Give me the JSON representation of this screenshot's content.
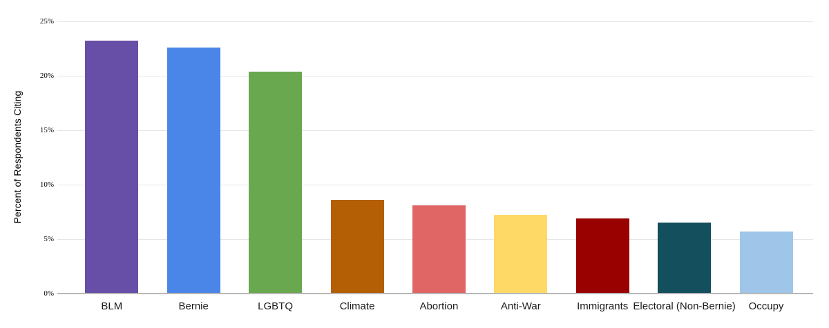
{
  "chart_data": {
    "type": "bar",
    "title": "",
    "xlabel": "",
    "ylabel": "Percent of Respondents Citing",
    "ylim": [
      0,
      25
    ],
    "grid": true,
    "legend": false,
    "yticks": [
      {
        "value": 0,
        "label": "0%"
      },
      {
        "value": 5,
        "label": "5%"
      },
      {
        "value": 10,
        "label": "10%"
      },
      {
        "value": 15,
        "label": "15%"
      },
      {
        "value": 20,
        "label": "20%"
      },
      {
        "value": 25,
        "label": "25%"
      }
    ],
    "categories": [
      "BLM",
      "Bernie",
      "LGBTQ",
      "Climate",
      "Abortion",
      "Anti-War",
      "Immigrants",
      "Electoral (Non-Bernie)",
      "Occupy"
    ],
    "values": [
      23.2,
      22.6,
      20.4,
      8.6,
      8.1,
      7.2,
      6.9,
      6.5,
      5.7
    ],
    "bar_colors": [
      "#674ea7",
      "#4a86e8",
      "#6aa84f",
      "#b45f06",
      "#e06666",
      "#ffd966",
      "#990000",
      "#134f5c",
      "#9fc5e8"
    ]
  },
  "colors": {
    "background": "#ffffff",
    "gridline": "#e6e6e6",
    "axis_line": "#b7b7b7",
    "tick_label": "#000000",
    "category_label": "#1a1a1a",
    "axis_title": "#000000"
  }
}
